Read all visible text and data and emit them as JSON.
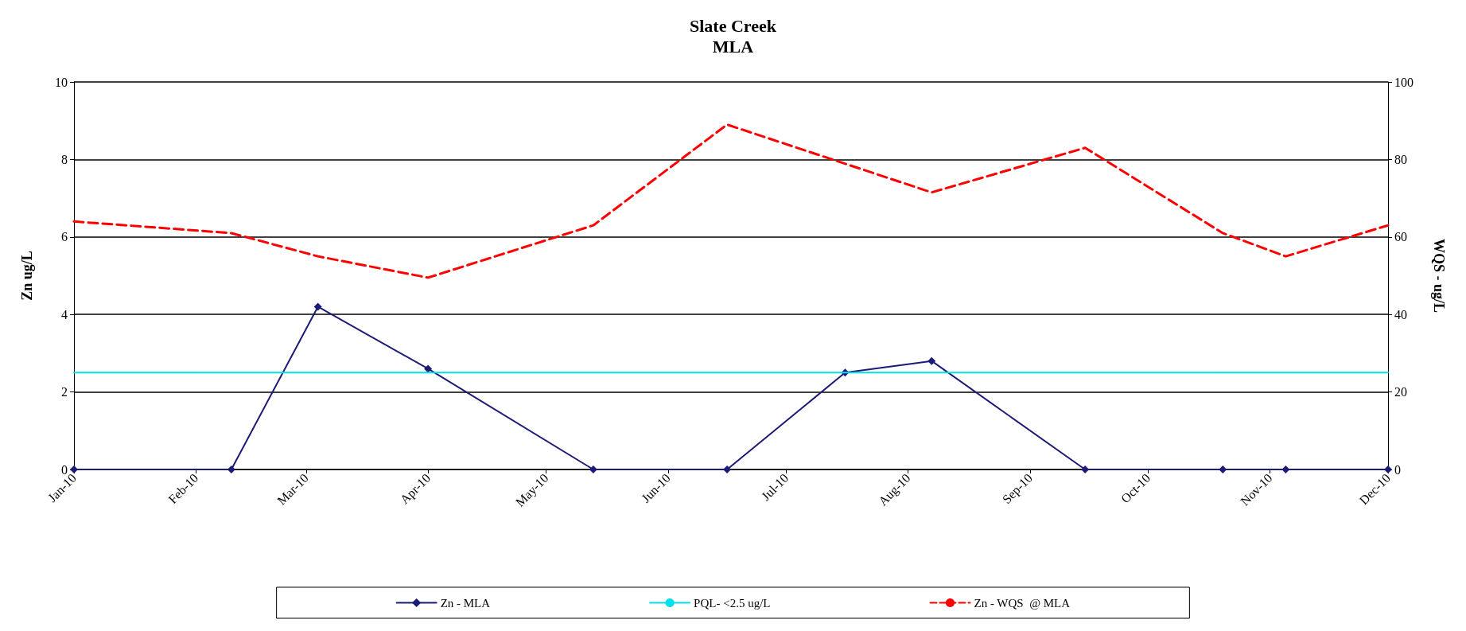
{
  "chart_data": {
    "type": "line",
    "title": "Slate Creek",
    "subtitle": "MLA",
    "ylabel": "Zn ug/L",
    "y2label": "WQS - ug/L",
    "x": [
      "2010-01-01",
      "2010-02-10",
      "2010-03-04",
      "2010-04-01",
      "2010-05-13",
      "2010-06-16",
      "2010-07-16",
      "2010-08-07",
      "2010-09-15",
      "2010-10-20",
      "2010-11-05",
      "2010-12-01"
    ],
    "series": [
      {
        "name": "Zn - MLA",
        "color": "#1c1c78",
        "marker": "diamond",
        "values": [
          0,
          0,
          4.2,
          2.6,
          0,
          0,
          2.5,
          2.8,
          0,
          0,
          0,
          0
        ]
      },
      {
        "name": "PQL- <2.5 ug/L",
        "color": "#00e0e8",
        "marker": "none",
        "x": [
          "2010-01-01",
          "2010-12-01"
        ],
        "values": [
          2.5,
          2.5
        ]
      },
      {
        "name": "Zn - WQS  @ MLA",
        "color": "#ff0000",
        "marker": "none",
        "line_style": "dashed",
        "axis": "y2",
        "x": [
          "2010-01-01",
          "2010-02-10",
          "2010-03-04",
          "2010-04-01",
          "2010-05-13",
          "2010-06-16",
          "2010-08-07",
          "2010-09-15",
          "2010-10-20",
          "2010-11-05",
          "2010-12-01"
        ],
        "values": [
          64,
          61,
          55,
          49.5,
          63,
          89,
          71.5,
          83,
          61,
          55,
          63
        ]
      }
    ],
    "xlim": [
      "2010-01-01",
      "2010-12-01"
    ],
    "xticks": [
      {
        "value": "2010-01-01",
        "label": "Jan-10"
      },
      {
        "value": "2010-02-01",
        "label": "Feb-10"
      },
      {
        "value": "2010-03-01",
        "label": "Mar-10"
      },
      {
        "value": "2010-04-01",
        "label": "Apr-10"
      },
      {
        "value": "2010-05-01",
        "label": "May-10"
      },
      {
        "value": "2010-06-01",
        "label": "Jun-10"
      },
      {
        "value": "2010-07-01",
        "label": "Jul-10"
      },
      {
        "value": "2010-08-01",
        "label": "Aug-10"
      },
      {
        "value": "2010-09-01",
        "label": "Sep-10"
      },
      {
        "value": "2010-10-01",
        "label": "Oct-10"
      },
      {
        "value": "2010-11-01",
        "label": "Nov-10"
      },
      {
        "value": "2010-12-01",
        "label": "Dec-10"
      }
    ],
    "ylim": [
      0,
      10
    ],
    "yticks": [
      0,
      2,
      4,
      6,
      8,
      10
    ],
    "y2lim": [
      0,
      100
    ],
    "y2ticks": [
      0,
      20,
      40,
      60,
      80,
      100
    ],
    "grid": "y",
    "legend": "bottom"
  }
}
